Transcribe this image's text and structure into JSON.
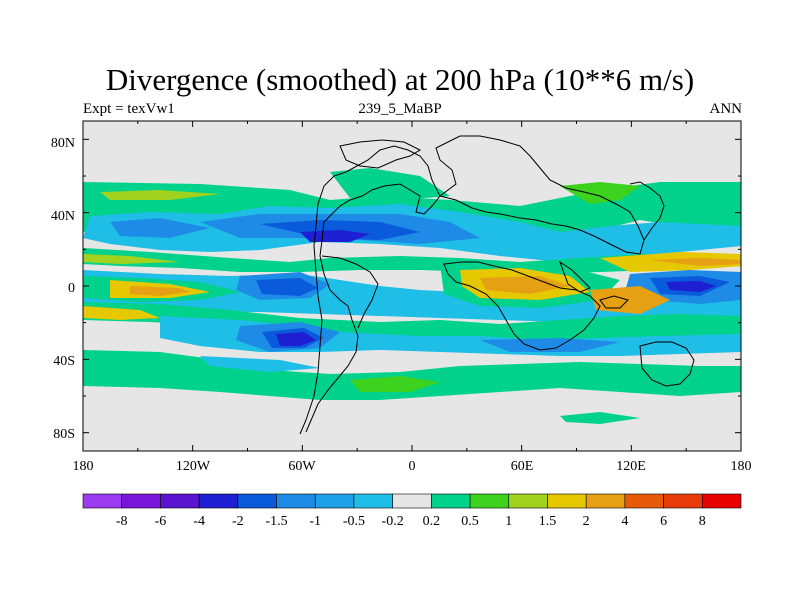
{
  "title": "Divergence (smoothed) at 200 hPa (10**6 m/s)",
  "subtitle_left": "Expt = texVw1",
  "subtitle_center": "239_5_MaBP",
  "subtitle_right": "ANN",
  "lat_ticks": [
    "80N",
    "40N",
    "0",
    "40S",
    "80S"
  ],
  "lon_ticks": [
    "180",
    "120W",
    "60W",
    "0",
    "60E",
    "120E",
    "180"
  ],
  "colorbar": {
    "labels": [
      "-8",
      "-6",
      "-4",
      "-2",
      "-1.5",
      "-1",
      "-0.5",
      "-0.2",
      "0.2",
      "0.5",
      "1",
      "1.5",
      "2",
      "4",
      "6",
      "8"
    ],
    "colors": [
      "#8c1ee6",
      "#7a16dc",
      "#5a14d0",
      "#1e1ed2",
      "#0a5adc",
      "#1e8ce6",
      "#1ea0e6",
      "#1ebee6",
      "#e6e6e6",
      "#00d28c",
      "#3cd21e",
      "#a0d21e",
      "#e6c800",
      "#e6a014",
      "#e65a0a",
      "#e60a0a"
    ]
  },
  "palette": {
    "neutral": "#e6e6e6",
    "weak_pos": "#00d28c",
    "mod_pos": "#3cd21e",
    "pos_15": "#a0d21e",
    "pos_2": "#e6c800",
    "pos_4": "#e6a014",
    "pos_6": "#e65a0a",
    "weak_neg": "#1ebee6",
    "neg_05": "#1ea0e6",
    "neg_1": "#1e8ce6",
    "neg_15": "#0a5adc",
    "neg_2": "#1e1ed2"
  }
}
